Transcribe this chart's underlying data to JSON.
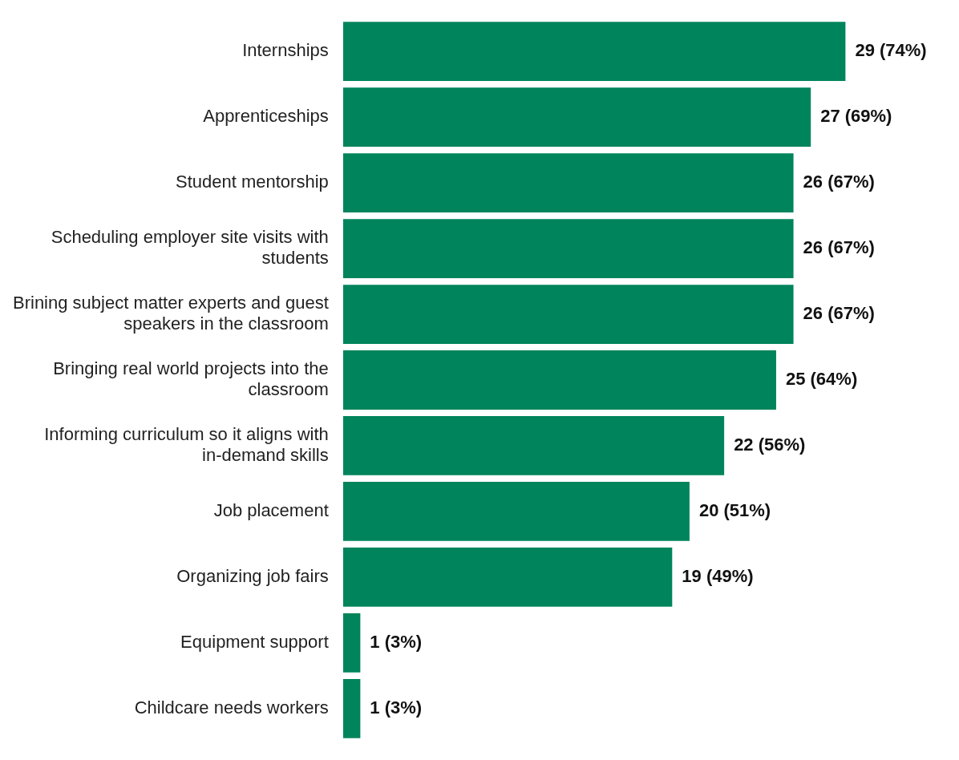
{
  "chart_data": {
    "type": "bar",
    "orientation": "horizontal",
    "categories": [
      "Internships",
      "Apprenticeships",
      "Student mentorship",
      "Scheduling employer site visits with students",
      "Brining subject matter experts and guest speakers in the classroom",
      "Bringing real world projects into the classroom",
      "Informing curriculum so it aligns with in-demand skills",
      "Job placement",
      "Organizing job fairs",
      "Equipment support",
      "Childcare needs workers"
    ],
    "values": [
      29,
      27,
      26,
      26,
      26,
      25,
      22,
      20,
      19,
      1,
      1
    ],
    "value_labels": [
      "29 (74%)",
      "27 (69%)",
      "26 (67%)",
      "26 (67%)",
      "26 (67%)",
      "25 (64%)",
      "22 (56%)",
      "20 (51%)",
      "19 (49%)",
      "1 (3%)",
      "1 (3%)"
    ],
    "color": "#00845c",
    "tick_labels": "y"
  }
}
